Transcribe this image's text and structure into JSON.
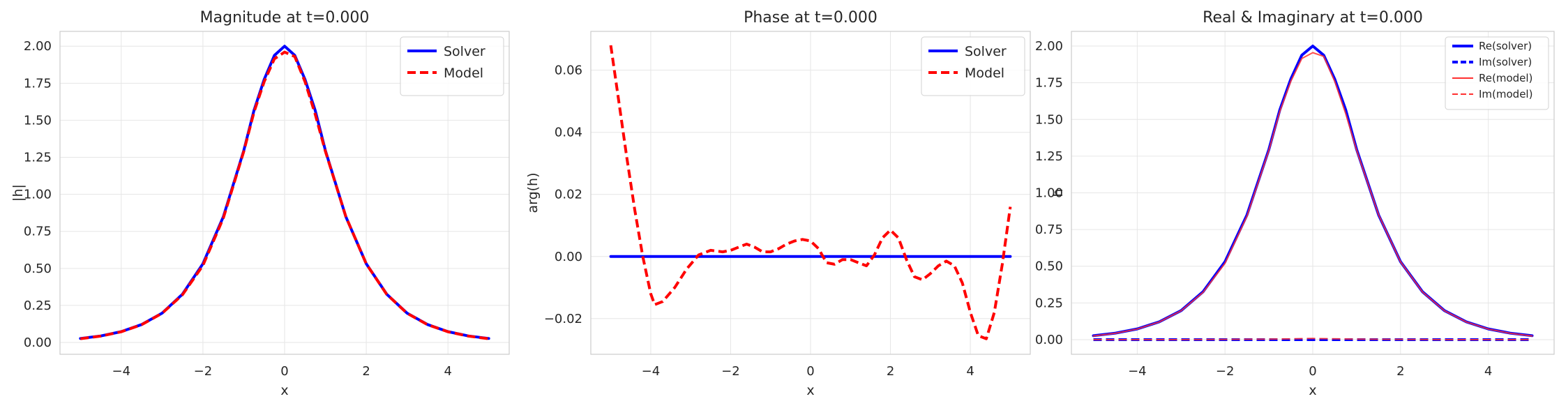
{
  "chart_data": [
    {
      "type": "line",
      "title": "Magnitude at t=0.000",
      "xlabel": "x",
      "ylabel": "|h|",
      "xlim": [
        -5.5,
        5.5
      ],
      "ylim": [
        -0.08,
        2.1
      ],
      "xticks": [
        -4,
        -2,
        0,
        2,
        4
      ],
      "xtick_labels": [
        "−4",
        "−2",
        "0",
        "2",
        "4"
      ],
      "yticks": [
        0,
        0.25,
        0.5,
        0.75,
        1.0,
        1.25,
        1.5,
        1.75,
        2.0
      ],
      "ytick_labels": [
        "0.00",
        "0.25",
        "0.50",
        "0.75",
        "1.00",
        "1.25",
        "1.50",
        "1.75",
        "2.00"
      ],
      "grid": true,
      "legend": "top-right",
      "series": [
        {
          "name": "Solver",
          "color": "#0000ff",
          "style": "solid",
          "x": [
            -5,
            -4.5,
            -4,
            -3.5,
            -3,
            -2.5,
            -2,
            -1.5,
            -1,
            -0.75,
            -0.5,
            -0.25,
            0,
            0.25,
            0.5,
            0.75,
            1,
            1.5,
            2,
            2.5,
            3,
            3.5,
            4,
            4.5,
            5
          ],
          "y": [
            0.027,
            0.044,
            0.073,
            0.121,
            0.198,
            0.326,
            0.531,
            0.849,
            1.296,
            1.566,
            1.775,
            1.938,
            2.0,
            1.938,
            1.775,
            1.566,
            1.296,
            0.849,
            0.531,
            0.326,
            0.198,
            0.121,
            0.073,
            0.044,
            0.027
          ]
        },
        {
          "name": "Model",
          "color": "#ff0000",
          "style": "dashed",
          "x": [
            -5,
            -4.5,
            -4,
            -3.5,
            -3,
            -2.5,
            -2,
            -1.5,
            -1,
            -0.75,
            -0.5,
            -0.25,
            0,
            0.25,
            0.5,
            0.75,
            1,
            1.5,
            2,
            2.5,
            3,
            3.5,
            4,
            4.5,
            5
          ],
          "y": [
            0.025,
            0.043,
            0.072,
            0.12,
            0.197,
            0.322,
            0.52,
            0.84,
            1.29,
            1.555,
            1.76,
            1.915,
            1.96,
            1.93,
            1.76,
            1.54,
            1.29,
            0.85,
            0.53,
            0.325,
            0.197,
            0.12,
            0.072,
            0.043,
            0.025
          ]
        }
      ]
    },
    {
      "type": "line",
      "title": "Phase at t=0.000",
      "xlabel": "x",
      "ylabel": "arg(h)",
      "xlim": [
        -5.5,
        5.5
      ],
      "ylim": [
        -0.0315,
        0.0725
      ],
      "xticks": [
        -4,
        -2,
        0,
        2,
        4
      ],
      "xtick_labels": [
        "−4",
        "−2",
        "0",
        "2",
        "4"
      ],
      "yticks": [
        -0.02,
        0,
        0.02,
        0.04,
        0.06
      ],
      "ytick_labels": [
        "−0.02",
        "0.00",
        "0.02",
        "0.04",
        "0.06"
      ],
      "grid": true,
      "legend": "top-right",
      "series": [
        {
          "name": "Solver",
          "color": "#0000ff",
          "style": "solid",
          "x": [
            -5,
            5
          ],
          "y": [
            0,
            0
          ]
        },
        {
          "name": "Model",
          "color": "#ff0000",
          "style": "dashed",
          "x": [
            -5,
            -4.8,
            -4.6,
            -4.4,
            -4.2,
            -4.0,
            -3.9,
            -3.7,
            -3.4,
            -3.1,
            -2.8,
            -2.5,
            -2.2,
            -2.0,
            -1.8,
            -1.6,
            -1.4,
            -1.2,
            -1.0,
            -0.8,
            -0.6,
            -0.4,
            -0.2,
            0.0,
            0.2,
            0.4,
            0.6,
            0.8,
            1.0,
            1.2,
            1.4,
            1.6,
            1.8,
            2.0,
            2.2,
            2.4,
            2.6,
            2.8,
            3.0,
            3.2,
            3.4,
            3.6,
            3.8,
            4.0,
            4.2,
            4.4,
            4.6,
            4.8,
            5.0
          ],
          "y": [
            0.068,
            0.05,
            0.032,
            0.015,
            0.0,
            -0.012,
            -0.0155,
            -0.0145,
            -0.01,
            -0.004,
            0.0005,
            0.002,
            0.0015,
            0.002,
            0.003,
            0.004,
            0.003,
            0.0015,
            0.0015,
            0.0025,
            0.004,
            0.005,
            0.0055,
            0.005,
            0.0025,
            -0.002,
            -0.0025,
            -0.001,
            -0.001,
            -0.002,
            -0.003,
            0.0005,
            0.006,
            0.0085,
            0.006,
            -0.001,
            -0.0065,
            -0.0075,
            -0.0055,
            -0.003,
            -0.0015,
            -0.003,
            -0.0085,
            -0.018,
            -0.0255,
            -0.0265,
            -0.018,
            -0.0025,
            0.016
          ]
        }
      ]
    },
    {
      "type": "line",
      "title": "Real & Imaginary at t=0.000",
      "xlabel": "x",
      "ylabel": "h",
      "xlim": [
        -5.5,
        5.5
      ],
      "ylim": [
        -0.1,
        2.1
      ],
      "xticks": [
        -4,
        -2,
        0,
        2,
        4
      ],
      "xtick_labels": [
        "−4",
        "−2",
        "0",
        "2",
        "4"
      ],
      "yticks": [
        0,
        0.25,
        0.5,
        0.75,
        1.0,
        1.25,
        1.5,
        1.75,
        2.0
      ],
      "ytick_labels": [
        "0.00",
        "0.25",
        "0.50",
        "0.75",
        "1.00",
        "1.25",
        "1.50",
        "1.75",
        "2.00"
      ],
      "grid": true,
      "legend": "top-right",
      "series": [
        {
          "name": "Re(solver)",
          "color": "#0000ff",
          "style": "solid",
          "x": [
            -5,
            -4.5,
            -4,
            -3.5,
            -3,
            -2.5,
            -2,
            -1.5,
            -1,
            -0.75,
            -0.5,
            -0.25,
            0,
            0.25,
            0.5,
            0.75,
            1,
            1.5,
            2,
            2.5,
            3,
            3.5,
            4,
            4.5,
            5
          ],
          "y": [
            0.027,
            0.044,
            0.073,
            0.121,
            0.198,
            0.326,
            0.531,
            0.849,
            1.296,
            1.566,
            1.775,
            1.938,
            2.0,
            1.938,
            1.775,
            1.566,
            1.296,
            0.849,
            0.531,
            0.326,
            0.198,
            0.121,
            0.073,
            0.044,
            0.027
          ]
        },
        {
          "name": "Im(solver)",
          "color": "#0000ff",
          "style": "dashed",
          "x": [
            -5,
            5
          ],
          "y": [
            0,
            0
          ]
        },
        {
          "name": "Re(model)",
          "color": "#ff3030",
          "style": "solid-thin",
          "x": [
            -5,
            -4.5,
            -4,
            -3.5,
            -3,
            -2.5,
            -2,
            -1.5,
            -1,
            -0.75,
            -0.5,
            -0.25,
            0,
            0.25,
            0.5,
            0.75,
            1,
            1.5,
            2,
            2.5,
            3,
            3.5,
            4,
            4.5,
            5
          ],
          "y": [
            0.025,
            0.043,
            0.072,
            0.12,
            0.197,
            0.322,
            0.52,
            0.84,
            1.29,
            1.555,
            1.76,
            1.915,
            1.955,
            1.93,
            1.76,
            1.54,
            1.29,
            0.85,
            0.53,
            0.325,
            0.197,
            0.12,
            0.072,
            0.043,
            0.025
          ]
        },
        {
          "name": "Im(model)",
          "color": "#ff3030",
          "style": "dashed-thin",
          "x": [
            -5,
            -3,
            -1,
            0,
            1,
            3,
            5
          ],
          "y": [
            0,
            0,
            0.003,
            0.008,
            0.003,
            0,
            0
          ]
        }
      ]
    }
  ]
}
